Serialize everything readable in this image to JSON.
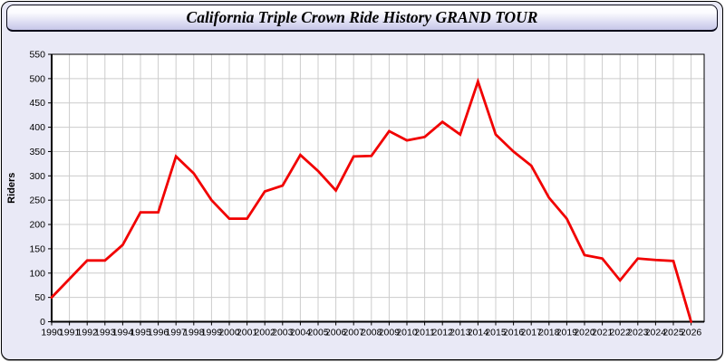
{
  "header": {
    "title": "California Triple Crown Ride History GRAND TOUR"
  },
  "colors": {
    "panel_bg": "#e9e9f6",
    "header_top": "#ffffff",
    "header_bottom": "#c6c6e8",
    "border": "#000000",
    "plot_bg": "#ffffff",
    "grid": "#cccccc",
    "axis": "#000000",
    "tick_text": "#000000",
    "line": "#f10000"
  },
  "chart_data": {
    "type": "line",
    "title": "California Triple Crown Ride History GRAND TOUR",
    "xlabel": "",
    "ylabel": "Riders",
    "x": [
      1990,
      1991,
      1992,
      1993,
      1994,
      1995,
      1996,
      1997,
      1998,
      1999,
      2000,
      2001,
      2002,
      2003,
      2004,
      2005,
      2006,
      2007,
      2008,
      2009,
      2010,
      2011,
      2012,
      2013,
      2014,
      2015,
      2016,
      2017,
      2018,
      2019,
      2020,
      2021,
      2022,
      2023,
      2024,
      2025,
      2026
    ],
    "series": [
      {
        "name": "Riders",
        "color": "#f10000",
        "values": [
          50,
          88,
          126,
          126,
          158,
          225,
          225,
          340,
          305,
          250,
          212,
          212,
          268,
          280,
          343,
          310,
          270,
          340,
          341,
          392,
          373,
          380,
          411,
          385,
          494,
          385,
          350,
          321,
          255,
          212,
          137,
          130,
          85,
          130,
          127,
          125,
          0
        ]
      }
    ],
    "ylim": [
      0,
      550
    ],
    "ytick_interval": 50,
    "yticks": [
      0,
      50,
      100,
      150,
      200,
      250,
      300,
      350,
      400,
      450,
      500,
      550
    ],
    "grid": true,
    "legend": "none"
  }
}
